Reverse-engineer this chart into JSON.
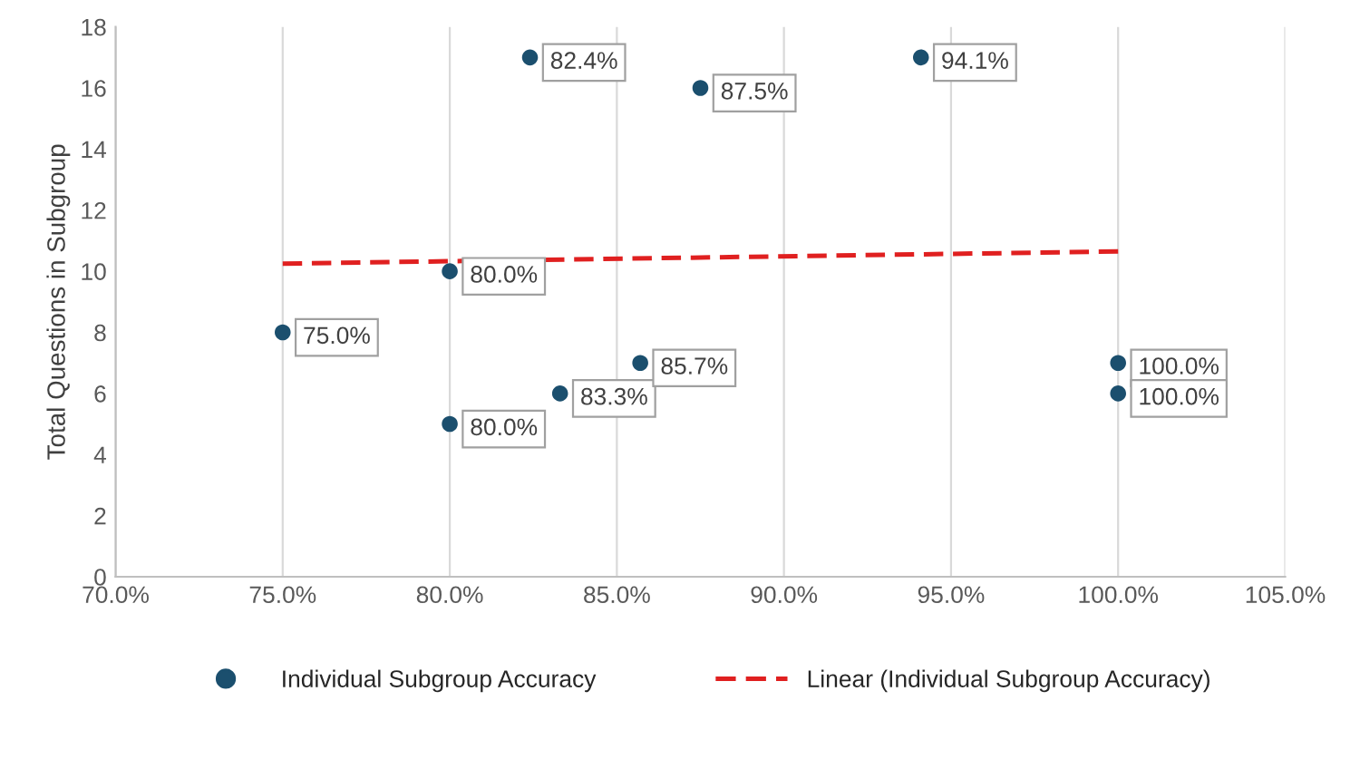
{
  "chart_data": {
    "type": "scatter",
    "ylabel": "Total Questions in Subgroup",
    "xlim": [
      70,
      105
    ],
    "xticks": [
      {
        "value": 70,
        "label": "70.0%"
      },
      {
        "value": 75,
        "label": "75.0%"
      },
      {
        "value": 80,
        "label": "80.0%"
      },
      {
        "value": 85,
        "label": "85.0%"
      },
      {
        "value": 90,
        "label": "90.0%"
      },
      {
        "value": 95,
        "label": "95.0%"
      },
      {
        "value": 100,
        "label": "100.0%"
      },
      {
        "value": 105,
        "label": "105.0%"
      }
    ],
    "ylim": [
      0,
      18
    ],
    "yticks": [
      0,
      2,
      4,
      6,
      8,
      10,
      12,
      14,
      16,
      18
    ],
    "grid": "x",
    "legend": "bottom",
    "annotations": [
      {
        "text": "75.0%",
        "x": 75.0,
        "y": 8
      },
      {
        "text": "80.0%",
        "x": 80.0,
        "y": 10
      },
      {
        "text": "80.0%",
        "x": 80.0,
        "y": 5
      },
      {
        "text": "82.4%",
        "x": 82.4,
        "y": 17
      },
      {
        "text": "83.3%",
        "x": 83.3,
        "y": 6
      },
      {
        "text": "85.7%",
        "x": 85.7,
        "y": 7
      },
      {
        "text": "87.5%",
        "x": 87.5,
        "y": 16
      },
      {
        "text": "94.1%",
        "x": 94.1,
        "y": 17
      },
      {
        "text": "100.0%",
        "x": 100.0,
        "y": 7
      },
      {
        "text": "100.0%",
        "x": 100.0,
        "y": 6
      }
    ],
    "series": [
      {
        "name": "Individual Subgroup Accuracy",
        "marker": "circle",
        "color": "#1b4f6e",
        "x": [
          75.0,
          80.0,
          80.0,
          82.4,
          83.3,
          85.7,
          87.5,
          94.1,
          100.0,
          100.0
        ],
        "values": [
          8,
          10,
          5,
          17,
          6,
          7,
          16,
          17,
          7,
          6
        ]
      },
      {
        "name": "Linear (Individual Subgroup Accuracy)",
        "type": "line",
        "marker": "none",
        "color": "#e02020",
        "line_style": "dashed",
        "x": [
          75.0,
          100.0
        ],
        "values": [
          10.25,
          10.65
        ]
      }
    ]
  }
}
